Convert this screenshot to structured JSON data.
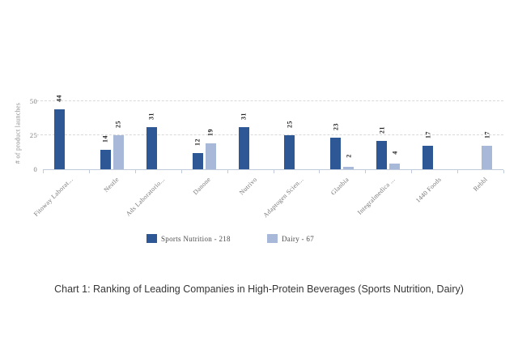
{
  "caption": "Chart 1: Ranking of Leading Companies in High-Protein Beverages (Sports Nutrition, Dairy)",
  "chart_data": {
    "type": "bar",
    "title": "",
    "xlabel": "",
    "ylabel": "# of product launches",
    "ylim": [
      0,
      50
    ],
    "yticks": [
      0,
      25,
      50
    ],
    "grid": "horizontal dashed gridlines at 25 and 50",
    "legend_position": "bottom",
    "categories": [
      "Fitoway Laborat...",
      "Nestle",
      "Ads Laboratorio...",
      "Danone",
      "Nutrivo",
      "Adaptogen Scien...",
      "Glanbia",
      "Integralmedica ...",
      "1440 Foods",
      "Rebbl"
    ],
    "series": [
      {
        "name": "Sports Nutrition",
        "legend_label": "Sports Nutrition - 218",
        "total": 218,
        "color": "#2d5795",
        "values": [
          44,
          14,
          31,
          12,
          31,
          25,
          23,
          21,
          17,
          null
        ]
      },
      {
        "name": "Dairy",
        "legend_label": "Dairy - 67",
        "total": 67,
        "color": "#a7b8d8",
        "values": [
          null,
          25,
          null,
          19,
          null,
          null,
          2,
          4,
          null,
          17
        ]
      }
    ],
    "colors": {
      "sports_nutrition": "#2d5795",
      "dairy": "#a7b8d8",
      "gridline": "#d9d9d9",
      "axis": "#bfcbdb",
      "axis_text": "#7f7f7f",
      "value_text": "#1f1f1f"
    }
  }
}
